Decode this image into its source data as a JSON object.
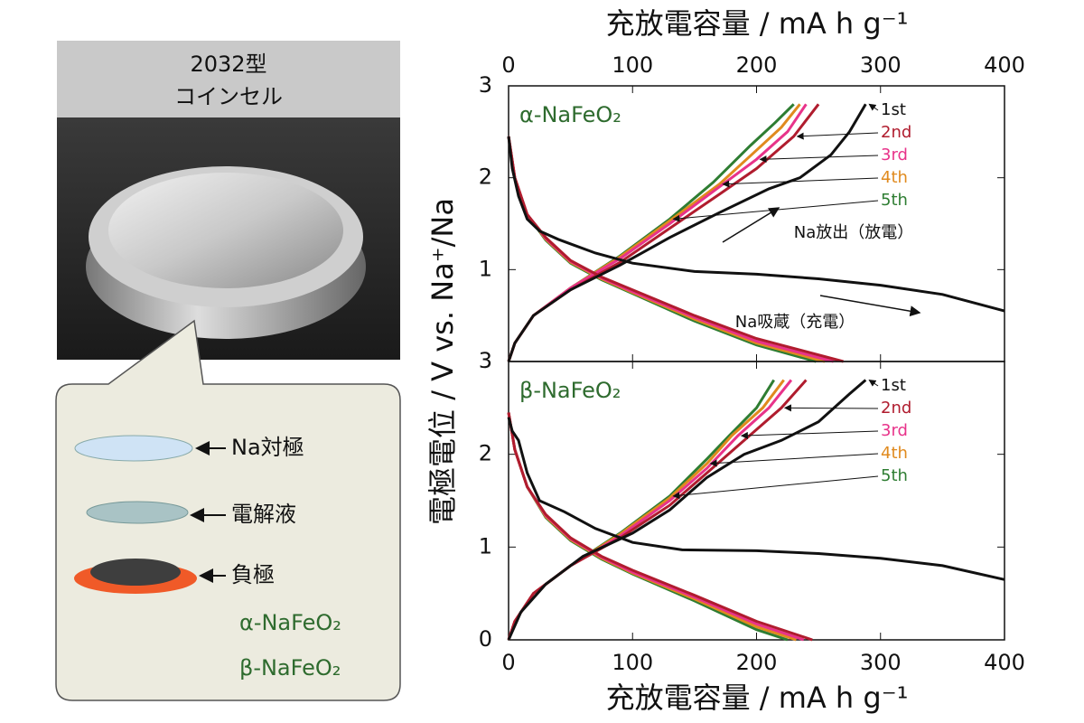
{
  "figure": {
    "cell_label": [
      "2032型",
      "コインセル"
    ],
    "diagram_items": [
      "Na対極",
      "電解液",
      "負極"
    ],
    "diagram_materials": [
      "α-NaFeO₂",
      "β-NaFeO₂"
    ]
  },
  "chart_data": [
    {
      "type": "line",
      "panel_label": "α-NaFeO₂",
      "xlabel": "充放電容量 / mA h g⁻¹",
      "ylabel": "電極電位 / V vs. Na⁺/Na",
      "x_axis_position": "top",
      "xlim": [
        0,
        400
      ],
      "xticks": [
        0,
        100,
        200,
        300,
        400
      ],
      "ylim": [
        0,
        3
      ],
      "yticks": [
        1,
        2,
        3
      ],
      "annotations": [
        "Na放出（放電）",
        "Na吸蔵（充電）"
      ],
      "series": [
        {
          "name": "1st",
          "color": "#111111",
          "x": [
            0,
            3,
            8,
            15,
            25,
            40,
            70,
            100,
            150,
            200,
            250,
            300,
            350,
            400,
            null,
            0,
            5,
            20,
            50,
            90,
            130,
            170,
            210,
            235,
            260,
            275,
            288
          ],
          "values": [
            2.45,
            2.1,
            1.8,
            1.55,
            1.42,
            1.33,
            1.18,
            1.07,
            0.98,
            0.95,
            0.9,
            0.83,
            0.73,
            0.55,
            null,
            0,
            0.2,
            0.5,
            0.78,
            1.05,
            1.35,
            1.62,
            1.88,
            2.0,
            2.25,
            2.5,
            2.8
          ]
        },
        {
          "name": "2nd",
          "color": "#b01c2e",
          "x": [
            0,
            5,
            15,
            30,
            50,
            75,
            100,
            150,
            200,
            270,
            null,
            0,
            5,
            20,
            50,
            90,
            130,
            170,
            200,
            230,
            250
          ],
          "values": [
            2.45,
            2.0,
            1.6,
            1.35,
            1.1,
            0.92,
            0.78,
            0.5,
            0.25,
            0,
            null,
            0,
            0.2,
            0.5,
            0.78,
            1.08,
            1.45,
            1.82,
            2.1,
            2.45,
            2.8
          ]
        },
        {
          "name": "3rd",
          "color": "#e8338a",
          "x": [
            0,
            5,
            15,
            30,
            50,
            75,
            100,
            150,
            200,
            262,
            null,
            0,
            5,
            20,
            50,
            90,
            130,
            170,
            200,
            225,
            240
          ],
          "values": [
            2.45,
            2.0,
            1.6,
            1.34,
            1.09,
            0.91,
            0.76,
            0.48,
            0.22,
            0,
            null,
            0,
            0.2,
            0.5,
            0.8,
            1.12,
            1.5,
            1.9,
            2.2,
            2.5,
            2.8
          ]
        },
        {
          "name": "4th",
          "color": "#e08a1e",
          "x": [
            0,
            5,
            15,
            30,
            50,
            75,
            100,
            150,
            200,
            255,
            null,
            0,
            5,
            20,
            50,
            90,
            130,
            170,
            200,
            220,
            235
          ],
          "values": [
            2.45,
            2.0,
            1.6,
            1.33,
            1.08,
            0.9,
            0.75,
            0.46,
            0.2,
            0,
            null,
            0,
            0.2,
            0.5,
            0.8,
            1.14,
            1.53,
            1.93,
            2.3,
            2.55,
            2.8
          ]
        },
        {
          "name": "5th",
          "color": "#2e7d32",
          "x": [
            0,
            5,
            15,
            30,
            50,
            75,
            100,
            150,
            200,
            248,
            null,
            0,
            5,
            20,
            50,
            90,
            130,
            165,
            195,
            215,
            230
          ],
          "values": [
            2.45,
            2.0,
            1.6,
            1.32,
            1.07,
            0.89,
            0.74,
            0.44,
            0.18,
            0,
            null,
            0,
            0.2,
            0.5,
            0.8,
            1.15,
            1.55,
            1.95,
            2.35,
            2.6,
            2.8
          ]
        }
      ]
    },
    {
      "type": "line",
      "panel_label": "β-NaFeO₂",
      "xlabel": "充放電容量 / mA h g⁻¹",
      "x_axis_position": "bottom",
      "xlim": [
        0,
        400
      ],
      "xticks": [
        0,
        100,
        200,
        300,
        400
      ],
      "ylim": [
        0,
        3
      ],
      "yticks": [
        0,
        1,
        2,
        3
      ],
      "series": [
        {
          "name": "1st",
          "color": "#111111",
          "x": [
            0,
            3,
            8,
            15,
            25,
            45,
            70,
            100,
            140,
            200,
            250,
            300,
            350,
            400,
            null,
            0,
            10,
            30,
            60,
            100,
            130,
            160,
            190,
            220,
            250,
            275,
            288
          ],
          "values": [
            2.4,
            2.25,
            2.15,
            1.8,
            1.5,
            1.38,
            1.2,
            1.05,
            0.97,
            0.96,
            0.93,
            0.88,
            0.8,
            0.65,
            null,
            0,
            0.3,
            0.6,
            0.9,
            1.15,
            1.4,
            1.75,
            2.0,
            2.15,
            2.35,
            2.65,
            2.8
          ]
        },
        {
          "name": "2nd",
          "color": "#b01c2e",
          "x": [
            0,
            5,
            15,
            30,
            50,
            75,
            100,
            150,
            200,
            245,
            null,
            0,
            5,
            20,
            50,
            90,
            130,
            160,
            190,
            220,
            240
          ],
          "values": [
            2.45,
            2.05,
            1.65,
            1.35,
            1.1,
            0.9,
            0.75,
            0.48,
            0.2,
            0,
            null,
            0,
            0.2,
            0.5,
            0.8,
            1.1,
            1.45,
            1.8,
            2.15,
            2.5,
            2.8
          ]
        },
        {
          "name": "3rd",
          "color": "#e8338a",
          "x": [
            0,
            5,
            15,
            30,
            50,
            75,
            100,
            150,
            200,
            238,
            null,
            0,
            5,
            20,
            50,
            90,
            130,
            160,
            185,
            210,
            228
          ],
          "values": [
            2.45,
            2.05,
            1.65,
            1.34,
            1.09,
            0.89,
            0.73,
            0.46,
            0.17,
            0,
            null,
            0,
            0.2,
            0.5,
            0.8,
            1.12,
            1.5,
            1.85,
            2.2,
            2.5,
            2.8
          ]
        },
        {
          "name": "4th",
          "color": "#e08a1e",
          "x": [
            0,
            5,
            15,
            30,
            50,
            75,
            100,
            150,
            200,
            232,
            null,
            0,
            5,
            20,
            50,
            90,
            130,
            160,
            180,
            205,
            222
          ],
          "values": [
            2.45,
            2.05,
            1.65,
            1.33,
            1.08,
            0.88,
            0.72,
            0.44,
            0.14,
            0,
            null,
            0,
            0.2,
            0.5,
            0.8,
            1.14,
            1.53,
            1.9,
            2.2,
            2.5,
            2.8
          ]
        },
        {
          "name": "5th",
          "color": "#2e7d32",
          "x": [
            0,
            5,
            15,
            30,
            50,
            75,
            100,
            150,
            200,
            225,
            null,
            0,
            5,
            20,
            50,
            90,
            130,
            160,
            178,
            200,
            214
          ],
          "values": [
            2.45,
            2.05,
            1.65,
            1.32,
            1.07,
            0.87,
            0.71,
            0.42,
            0.11,
            0,
            null,
            0,
            0.2,
            0.5,
            0.8,
            1.15,
            1.55,
            1.95,
            2.2,
            2.5,
            2.8
          ]
        }
      ]
    }
  ]
}
